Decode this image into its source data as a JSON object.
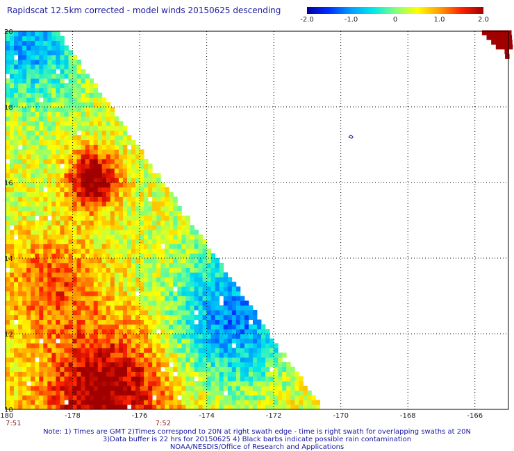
{
  "title": "Rapidscat 12.5km corrected - model winds 20150625 descending",
  "colorbar": {
    "min": -2.0,
    "max": 2.0,
    "tick_values": [
      -2.0,
      -1.0,
      0,
      1.0,
      2.0
    ],
    "tick_labels": [
      "-2.0",
      "-1.0",
      "0",
      "1.0",
      "2.0"
    ],
    "colors": [
      "#0000a0",
      "#0030ff",
      "#00a0ff",
      "#00e8e8",
      "#80ff80",
      "#ffff00",
      "#ffa000",
      "#ff2000",
      "#a00000"
    ]
  },
  "map": {
    "lon_range": [
      -180,
      -165
    ],
    "lat_range": [
      10,
      20
    ],
    "lon_tick_values": [
      -180,
      -178,
      -176,
      -174,
      -172,
      -170,
      -168,
      -166
    ],
    "lon_tick_labels": [
      "-180",
      "-178",
      "-176",
      "-174",
      "-172",
      "-170",
      "-168",
      "-166"
    ],
    "lat_tick_values": [
      10,
      12,
      14,
      16,
      18,
      20
    ],
    "lat_tick_labels": [
      "10",
      "12",
      "14",
      "16",
      "18",
      "20"
    ],
    "grid": "dotted",
    "swath_edge": [
      [
        -178.5,
        20
      ],
      [
        -170.6,
        10
      ]
    ],
    "time_labels": [
      {
        "lon": -180,
        "text": "7:51"
      },
      {
        "lon": -175.3,
        "text": "7:52"
      }
    ],
    "island_marker": {
      "lon": -169.7,
      "lat": 17.2
    }
  },
  "notes": [
    "Note: 1) Times are GMT 2)Times correspond to 20N at right swath edge - time is right swath for overlapping swaths at 20N",
    "3)Data buffer is 22 hrs for 20150625 4) Black barbs indicate possible rain contamination",
    "NOAA/NESDIS/Office of Research and Applications"
  ]
}
